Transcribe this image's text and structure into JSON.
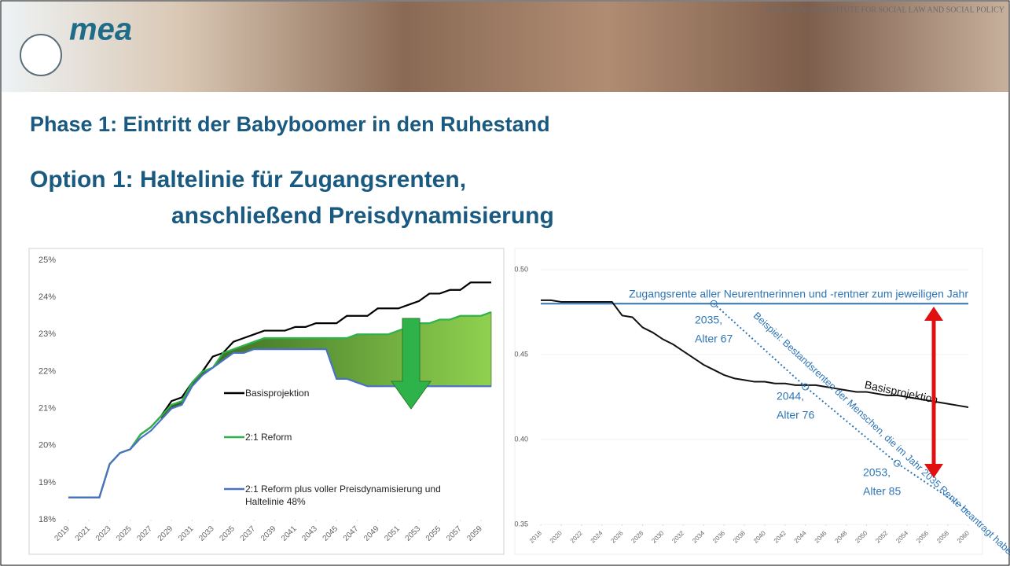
{
  "header": {
    "logo": "mea",
    "institute": "MAX PLANCK INSTITUTE FOR SOCIAL LAW AND SOCIAL POLICY"
  },
  "title": "Phase 1: Eintritt der Babyboomer in den Ruhestand",
  "subtitle_lines": [
    "Option 1: Haltelinie für Zugangsrenten,",
    "anschließend Preisdynamisierung"
  ],
  "chart_data": [
    {
      "type": "line",
      "x": [
        2019,
        2020,
        2021,
        2022,
        2023,
        2024,
        2025,
        2026,
        2027,
        2028,
        2029,
        2030,
        2031,
        2032,
        2033,
        2034,
        2035,
        2036,
        2037,
        2038,
        2039,
        2040,
        2041,
        2042,
        2043,
        2044,
        2045,
        2046,
        2047,
        2048,
        2049,
        2050,
        2051,
        2052,
        2053,
        2054,
        2055,
        2056,
        2057,
        2058,
        2059,
        2060
      ],
      "xlim": [
        2019,
        2060
      ],
      "xticks": [
        2019,
        2021,
        2023,
        2025,
        2027,
        2029,
        2031,
        2033,
        2035,
        2037,
        2039,
        2041,
        2043,
        2045,
        2047,
        2049,
        2051,
        2053,
        2055,
        2057,
        2059
      ],
      "ylim": [
        18,
        25
      ],
      "yticks": [
        {
          "value": 18,
          "label": "18%"
        },
        {
          "value": 19,
          "label": "19%"
        },
        {
          "value": 20,
          "label": "20%"
        },
        {
          "value": 21,
          "label": "21%"
        },
        {
          "value": 22,
          "label": "22%"
        },
        {
          "value": 23,
          "label": "23%"
        },
        {
          "value": 24,
          "label": "24%"
        },
        {
          "value": 25,
          "label": "25%"
        }
      ],
      "grid": false,
      "series": [
        {
          "name": "Basisprojektion",
          "color": "#000000",
          "values": [
            18.6,
            18.6,
            18.6,
            18.6,
            19.5,
            19.8,
            19.9,
            20.3,
            20.5,
            20.8,
            21.2,
            21.3,
            21.7,
            22.0,
            22.4,
            22.5,
            22.8,
            22.9,
            23.0,
            23.1,
            23.1,
            23.1,
            23.2,
            23.2,
            23.3,
            23.3,
            23.3,
            23.5,
            23.5,
            23.5,
            23.7,
            23.7,
            23.7,
            23.8,
            23.9,
            24.1,
            24.1,
            24.2,
            24.2,
            24.4,
            24.4,
            24.4
          ]
        },
        {
          "name": "2:1 Reform",
          "color": "#2eb24a",
          "values": [
            18.6,
            18.6,
            18.6,
            18.6,
            19.5,
            19.8,
            19.9,
            20.3,
            20.5,
            20.8,
            21.1,
            21.2,
            21.7,
            22.0,
            22.1,
            22.5,
            22.6,
            22.7,
            22.8,
            22.9,
            22.9,
            22.9,
            22.9,
            22.9,
            22.9,
            22.9,
            22.9,
            22.9,
            23.0,
            23.0,
            23.0,
            23.0,
            23.1,
            23.2,
            23.3,
            23.3,
            23.4,
            23.4,
            23.5,
            23.5,
            23.5,
            23.6
          ]
        },
        {
          "name": "2:1 Reform plus voller Preisdynamisierung und Haltelinie 48%",
          "color": "#4a72c4",
          "values": [
            18.6,
            18.6,
            18.6,
            18.6,
            19.5,
            19.8,
            19.9,
            20.2,
            20.4,
            20.7,
            21.0,
            21.1,
            21.6,
            21.9,
            22.1,
            22.3,
            22.5,
            22.5,
            22.6,
            22.6,
            22.6,
            22.6,
            22.6,
            22.6,
            22.6,
            22.6,
            21.8,
            21.8,
            21.7,
            21.6,
            21.6,
            21.6,
            21.6,
            21.6,
            21.6,
            21.6,
            21.6,
            21.6,
            21.6,
            21.6,
            21.6,
            21.6
          ]
        }
      ]
    },
    {
      "type": "line",
      "xlim": [
        2018,
        2060
      ],
      "xticks": [
        2018,
        2020,
        2022,
        2024,
        2026,
        2028,
        2030,
        2032,
        2034,
        2036,
        2038,
        2040,
        2042,
        2044,
        2046,
        2048,
        2050,
        2052,
        2054,
        2056,
        2058,
        2060
      ],
      "ylim": [
        0.35,
        0.5
      ],
      "yticks": [
        {
          "value": 0.35,
          "label": "0.35"
        },
        {
          "value": 0.4,
          "label": "0.40"
        },
        {
          "value": 0.45,
          "label": "0.45"
        },
        {
          "value": 0.5,
          "label": "0.50"
        }
      ],
      "grid": true,
      "series": [
        {
          "name": "Zugangsrente aller Neurentnerinnen und -rentner zum jeweiligen Jahr",
          "color": "#2e75b6",
          "x": [
            2018,
            2060
          ],
          "values": [
            0.48,
            0.48
          ]
        },
        {
          "name": "Basisprojektion",
          "color": "#111111",
          "x": [
            2018,
            2019,
            2020,
            2021,
            2022,
            2023,
            2024,
            2025,
            2026,
            2027,
            2028,
            2029,
            2030,
            2031,
            2032,
            2033,
            2034,
            2035,
            2036,
            2037,
            2038,
            2039,
            2040,
            2041,
            2042,
            2043,
            2044,
            2045,
            2046,
            2047,
            2048,
            2049,
            2050,
            2051,
            2052,
            2053,
            2054,
            2055,
            2056,
            2057,
            2058,
            2059,
            2060
          ],
          "values": [
            0.482,
            0.482,
            0.481,
            0.481,
            0.481,
            0.481,
            0.481,
            0.481,
            0.473,
            0.472,
            0.466,
            0.463,
            0.459,
            0.456,
            0.452,
            0.448,
            0.444,
            0.441,
            0.438,
            0.436,
            0.435,
            0.434,
            0.434,
            0.433,
            0.433,
            0.432,
            0.432,
            0.432,
            0.431,
            0.43,
            0.429,
            0.428,
            0.428,
            0.427,
            0.426,
            0.426,
            0.425,
            0.424,
            0.423,
            0.422,
            0.421,
            0.42,
            0.419
          ]
        },
        {
          "name": "Beispiel: Bestandsrenten der Menschen, die im Jahr 2035 Rente beantragt haben",
          "color": "#2e75b6",
          "dashed": true,
          "x": [
            2035,
            2044,
            2053,
            2060
          ],
          "values": [
            0.48,
            0.431,
            0.386,
            0.358
          ]
        }
      ],
      "annotations": [
        "2035,",
        "Alter 67",
        "2044,",
        "Alter 76",
        "2053,",
        "Alter 85"
      ]
    }
  ]
}
